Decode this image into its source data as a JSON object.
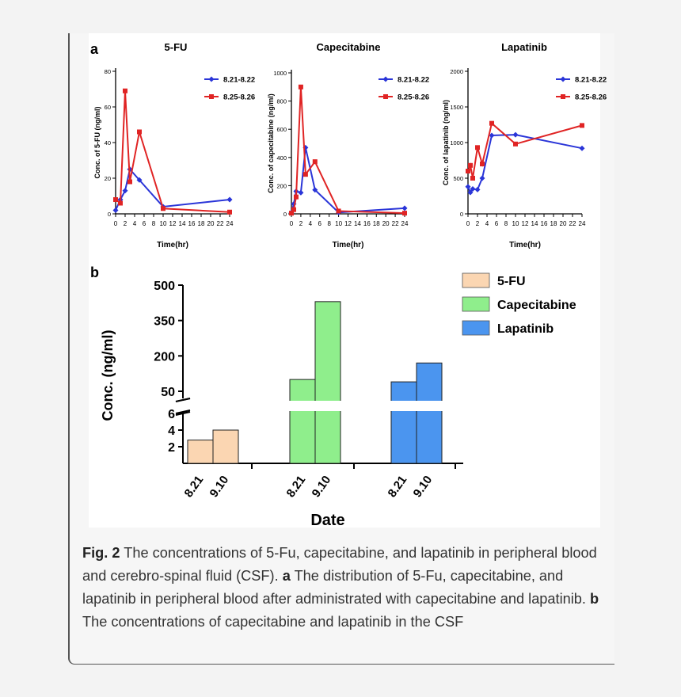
{
  "panels": {
    "a": "a",
    "b": "b"
  },
  "chart_data": [
    {
      "type": "line",
      "title": "5-FU",
      "xlabel": "Time(hr)",
      "ylabel": "Conc. of 5-FU (ng/ml)",
      "xlim": [
        0,
        24
      ],
      "ylim": [
        0,
        80
      ],
      "xticks": [
        "0",
        "2",
        "4",
        "6",
        "8",
        "10",
        "12",
        "14",
        "16",
        "18",
        "20",
        "22",
        "24"
      ],
      "yticks": [
        "0",
        "20",
        "40",
        "60",
        "80"
      ],
      "legend_position": "top-right",
      "series": [
        {
          "name": "8.21-8.22",
          "color": "#2a35d8",
          "x": [
            0,
            1,
            2,
            3,
            5,
            10,
            24
          ],
          "y": [
            2,
            8,
            13,
            25,
            19,
            4,
            8
          ]
        },
        {
          "name": "8.25-8.26",
          "color": "#e02424",
          "x": [
            0,
            1,
            2,
            3,
            5,
            10,
            24
          ],
          "y": [
            8,
            6,
            69,
            18,
            46,
            3,
            1
          ]
        }
      ]
    },
    {
      "type": "line",
      "title": "Capecitabine",
      "xlabel": "Time(hr)",
      "ylabel": "Conc. of capecitabine (ng/ml)",
      "xlim": [
        0,
        24
      ],
      "ylim": [
        0,
        1000
      ],
      "xticks": [
        "0",
        "2",
        "4",
        "6",
        "8",
        "10",
        "12",
        "14",
        "16",
        "18",
        "20",
        "22",
        "24"
      ],
      "yticks": [
        "0",
        "200",
        "400",
        "600",
        "800",
        "1000"
      ],
      "legend_position": "top-right",
      "series": [
        {
          "name": "8.21-8.22",
          "color": "#2a35d8",
          "x": [
            0,
            0.5,
            1,
            2,
            3,
            5,
            10,
            24
          ],
          "y": [
            10,
            70,
            160,
            150,
            470,
            170,
            10,
            40
          ]
        },
        {
          "name": "8.25-8.26",
          "color": "#e02424",
          "x": [
            0,
            0.5,
            1,
            2,
            3,
            5,
            10,
            24
          ],
          "y": [
            5,
            30,
            120,
            900,
            280,
            370,
            20,
            5
          ]
        }
      ]
    },
    {
      "type": "line",
      "title": "Lapatinib",
      "xlabel": "Time(hr)",
      "ylabel": "Conc. of lapatinib (ng/ml)",
      "xlim": [
        0,
        24
      ],
      "ylim": [
        0,
        2000
      ],
      "xticks": [
        "0",
        "2",
        "4",
        "6",
        "8",
        "10",
        "12",
        "14",
        "16",
        "18",
        "20",
        "22",
        "24"
      ],
      "yticks": [
        "0",
        "500",
        "1000",
        "1500",
        "2000"
      ],
      "legend_position": "top-right",
      "series": [
        {
          "name": "8.21-8.22",
          "color": "#2a35d8",
          "x": [
            0,
            0.5,
            1,
            2,
            3,
            5,
            10,
            24
          ],
          "y": [
            380,
            300,
            350,
            340,
            500,
            1100,
            1110,
            920
          ]
        },
        {
          "name": "8.25-8.26",
          "color": "#e02424",
          "x": [
            0,
            0.5,
            1,
            2,
            3,
            5,
            10,
            24
          ],
          "y": [
            600,
            680,
            500,
            930,
            700,
            1270,
            980,
            1240
          ]
        }
      ]
    },
    {
      "type": "bar",
      "xlabel": "Date",
      "ylabel": "Conc. (ng/ml)",
      "y_break": true,
      "lower_yticks": [
        "2",
        "4",
        "6"
      ],
      "upper_yticks": [
        "50",
        "200",
        "350",
        "500"
      ],
      "legend_position": "top-right",
      "categories": [
        "8.21",
        "9.10"
      ],
      "series": [
        {
          "name": "5-FU",
          "color": "#fbd6b2",
          "values": [
            2.8,
            4.0
          ]
        },
        {
          "name": "Capecitabine",
          "color": "#8fee8c",
          "values": [
            100,
            430
          ]
        },
        {
          "name": "Lapatinib",
          "color": "#4b95ef",
          "values": [
            90,
            170
          ]
        }
      ]
    }
  ],
  "caption": {
    "label": "Fig. 2",
    "text1": " The concentrations of 5-Fu, capecitabine, and lapatinib in peripheral blood and cerebro-spinal fluid (CSF). ",
    "bold_a": "a",
    "text2": " The distribution of 5-Fu, capecitabine, and lapatinib in peripheral blood after administrated with capecitabine and lapatinib. ",
    "bold_b": "b",
    "text3": " The concentrations of capecitabine and lapatinib in the CSF"
  }
}
